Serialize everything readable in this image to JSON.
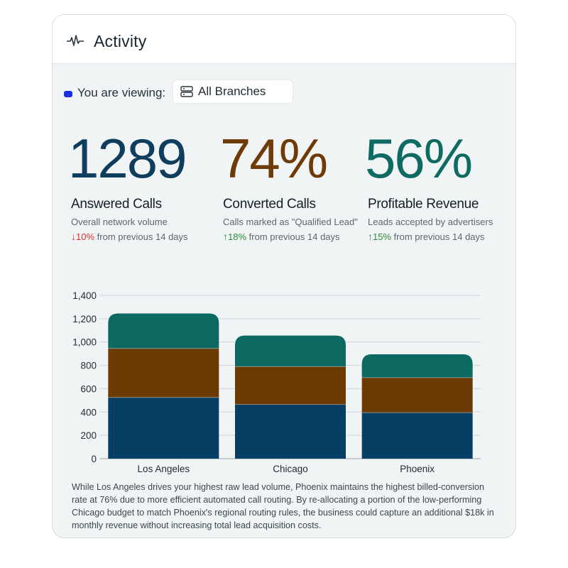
{
  "header": {
    "title": "Activity",
    "icon": "pulse-icon"
  },
  "viewing": {
    "label": "You are viewing:",
    "branch": "All Branches",
    "dot_color": "#1a2fe0",
    "branch_icon": "server-icon"
  },
  "kpis": [
    {
      "value": "1289",
      "color": "#0f3d5e",
      "title": "Answered Calls",
      "subtitle": "Overall network volume",
      "direction": "down",
      "arrow": "↓",
      "change": "10%",
      "change_text": " from previous 14 days"
    },
    {
      "value": "74%",
      "color": "#6e3a07",
      "title": "Converted Calls",
      "subtitle": "Calls marked as \"Qualified Lead\"",
      "direction": "up",
      "arrow": "↑",
      "change": "18%",
      "change_text": " from previous 14 days"
    },
    {
      "value": "56%",
      "color": "#0f6b62",
      "title": "Profitable Revenue",
      "subtitle": "Leads accepted by advertisers",
      "direction": "up",
      "arrow": "↑",
      "change": "15%",
      "change_text": " from previous 14 days"
    }
  ],
  "chart_data": {
    "type": "bar",
    "stacked": true,
    "categories": [
      "Los Angeles",
      "Chicago",
      "Phoenix"
    ],
    "series": [
      {
        "values": [
          525,
          465,
          395
        ],
        "color": "#063f63"
      },
      {
        "values": [
          420,
          325,
          300
        ],
        "color": "#6b3a05"
      },
      {
        "values": [
          300,
          265,
          200
        ],
        "color": "#0d6a62"
      }
    ],
    "ylim": [
      0,
      1400
    ],
    "yticks": [
      0,
      200,
      400,
      600,
      800,
      1000,
      1200,
      1400
    ],
    "ytick_labels": [
      "0",
      "200",
      "400",
      "600",
      "800",
      "1,000",
      "1,200",
      "1,400"
    ],
    "grid": true
  },
  "insight": "While Los Angeles drives your highest raw lead volume, Phoenix maintains the highest billed-conversion rate at 76% due to more efficient automated call routing. By re-allocating a portion of the low-performing Chicago budget to match Phoenix's regional routing rules, the business could capture an additional $18k in monthly revenue without increasing total lead acquisition costs."
}
